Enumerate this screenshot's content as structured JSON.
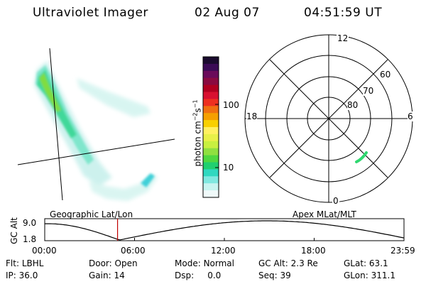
{
  "header": {
    "title": "Ultraviolet Imager",
    "date": "02 Aug 07",
    "time": "04:51:59 UT"
  },
  "colorbar": {
    "label": "photon cm^-2 s^-1",
    "ticks": [
      "100",
      "10"
    ],
    "colors": [
      "#1a0a2e",
      "#3a0a55",
      "#6a0a5a",
      "#8a0a40",
      "#b00020",
      "#d81030",
      "#ee3020",
      "#f07010",
      "#f5a000",
      "#f8d000",
      "#fff060",
      "#e8f048",
      "#c8f040",
      "#90e040",
      "#50d840",
      "#20d070",
      "#30d8c0",
      "#80e8e0",
      "#c8f4f0",
      "#f0fafa"
    ]
  },
  "polar": {
    "labels": {
      "top": "12",
      "bottom": "0",
      "left": "18",
      "right": "6"
    },
    "rings": [
      "60",
      "70",
      "80"
    ]
  },
  "panel_labels": {
    "left": "Geographic Lat/Lon",
    "right": "Apex MLat/MLT"
  },
  "altitude_plot": {
    "axis_label": "GC Alt",
    "y_ticks": [
      "9.0",
      "1.8"
    ],
    "x_ticks": [
      "00:00",
      "06:00",
      "12:00",
      "18:00",
      "23:59"
    ],
    "marker_time_fraction": 0.2027
  },
  "info": {
    "row1": [
      {
        "key": "Flt:",
        "value": "LBHL"
      },
      {
        "key": "Door:",
        "value": "Open"
      },
      {
        "key": "Mode:",
        "value": "Normal"
      },
      {
        "key": "GC Alt:",
        "value": "2.3 Re"
      },
      {
        "key": "GLat:",
        "value": "63.1"
      }
    ],
    "row2": [
      {
        "key": "IP:",
        "value": "36.0"
      },
      {
        "key": "Gain:",
        "value": "14"
      },
      {
        "key": "Dsp:",
        "value": "0.0"
      },
      {
        "key": "Seq:",
        "value": "39"
      },
      {
        "key": "GLon:",
        "value": "311.1"
      }
    ]
  }
}
